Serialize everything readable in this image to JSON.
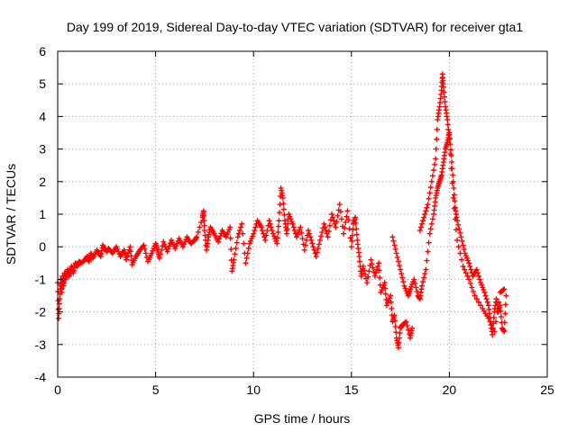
{
  "chart_data": {
    "type": "scatter",
    "title": "Day 199 of 2019, Sidereal Day-to-day VTEC variation (SDTVAR) for receiver gta1",
    "xlabel": "GPS time / hours",
    "ylabel": "SDTVAR / TECUs",
    "xlim": [
      0,
      25
    ],
    "ylim": [
      -4,
      6
    ],
    "xticks": [
      "0",
      "5",
      "10",
      "15",
      "20",
      "25"
    ],
    "yticks": [
      "-4",
      "-3",
      "-2",
      "-1",
      "0",
      "1",
      "2",
      "3",
      "4",
      "5",
      "6"
    ],
    "grid": true,
    "marker": "plus",
    "series": [
      {
        "name": "SDTVAR",
        "color": "#ff0000",
        "points": [
          [
            0.0,
            -1.1
          ],
          [
            0.05,
            -2.2
          ],
          [
            0.1,
            -1.6
          ],
          [
            0.15,
            -1.0
          ],
          [
            0.2,
            -1.4
          ],
          [
            0.25,
            -0.9
          ],
          [
            0.3,
            -1.2
          ],
          [
            0.35,
            -0.8
          ],
          [
            0.4,
            -1.0
          ],
          [
            0.5,
            -0.7
          ],
          [
            0.6,
            -0.9
          ],
          [
            0.7,
            -0.6
          ],
          [
            0.8,
            -0.8
          ],
          [
            0.9,
            -0.5
          ],
          [
            1.0,
            -0.6
          ],
          [
            1.1,
            -0.45
          ],
          [
            1.2,
            -0.5
          ],
          [
            1.4,
            -0.4
          ],
          [
            1.5,
            -0.3
          ],
          [
            1.6,
            -0.45
          ],
          [
            1.7,
            -0.2
          ],
          [
            1.8,
            -0.35
          ],
          [
            2.0,
            -0.1
          ],
          [
            2.2,
            -0.3
          ],
          [
            2.3,
            0.05
          ],
          [
            2.5,
            -0.15
          ],
          [
            2.6,
            -0.05
          ],
          [
            2.8,
            -0.2
          ],
          [
            3.0,
            0.0
          ],
          [
            3.2,
            -0.3
          ],
          [
            3.4,
            -0.1
          ],
          [
            3.5,
            -0.4
          ],
          [
            3.7,
            0.0
          ],
          [
            3.8,
            -0.55
          ],
          [
            4.0,
            -0.3
          ],
          [
            4.2,
            -0.1
          ],
          [
            4.4,
            0.05
          ],
          [
            4.6,
            -0.45
          ],
          [
            4.8,
            -0.2
          ],
          [
            5.0,
            0.1
          ],
          [
            5.1,
            -0.1
          ],
          [
            5.2,
            -0.35
          ],
          [
            5.4,
            0.15
          ],
          [
            5.6,
            -0.15
          ],
          [
            5.8,
            0.2
          ],
          [
            6.0,
            -0.05
          ],
          [
            6.2,
            0.25
          ],
          [
            6.4,
            0.0
          ],
          [
            6.6,
            0.3
          ],
          [
            6.8,
            0.1
          ],
          [
            7.0,
            0.2
          ],
          [
            7.1,
            0.3
          ],
          [
            7.4,
            0.9
          ],
          [
            7.45,
            1.1
          ],
          [
            7.5,
            0.5
          ],
          [
            7.6,
            -0.1
          ],
          [
            7.7,
            0.3
          ],
          [
            7.8,
            0.6
          ],
          [
            8.0,
            0.4
          ],
          [
            8.2,
            0.15
          ],
          [
            8.4,
            0.5
          ],
          [
            8.6,
            0.3
          ],
          [
            8.8,
            0.6
          ],
          [
            8.9,
            -0.75
          ],
          [
            9.0,
            -0.4
          ],
          [
            9.2,
            0.3
          ],
          [
            9.4,
            0.7
          ],
          [
            9.6,
            -0.5
          ],
          [
            9.8,
            0.1
          ],
          [
            10.0,
            0.4
          ],
          [
            10.2,
            0.8
          ],
          [
            10.4,
            0.6
          ],
          [
            10.6,
            0.2
          ],
          [
            10.8,
            0.8
          ],
          [
            11.0,
            0.4
          ],
          [
            11.2,
            0.1
          ],
          [
            11.3,
            0.8
          ],
          [
            11.4,
            1.8
          ],
          [
            11.5,
            1.5
          ],
          [
            11.6,
            0.8
          ],
          [
            11.7,
            0.4
          ],
          [
            11.8,
            1.0
          ],
          [
            12.0,
            0.7
          ],
          [
            12.2,
            0.3
          ],
          [
            12.4,
            0.6
          ],
          [
            12.6,
            -0.1
          ],
          [
            12.8,
            0.5
          ],
          [
            13.0,
            0.1
          ],
          [
            13.2,
            -0.3
          ],
          [
            13.4,
            0.2
          ],
          [
            13.6,
            0.7
          ],
          [
            13.8,
            0.3
          ],
          [
            14.0,
            1.0
          ],
          [
            14.2,
            0.6
          ],
          [
            14.4,
            1.3
          ],
          [
            14.6,
            0.4
          ],
          [
            14.8,
            1.1
          ],
          [
            15.0,
            0.0
          ],
          [
            15.1,
            0.7
          ],
          [
            15.2,
            0.9
          ],
          [
            15.3,
            0.2
          ],
          [
            15.4,
            -0.3
          ],
          [
            15.5,
            -0.9
          ],
          [
            15.6,
            -0.6
          ],
          [
            15.8,
            -1.1
          ],
          [
            16.0,
            -0.4
          ],
          [
            16.2,
            -0.9
          ],
          [
            16.4,
            -0.5
          ],
          [
            16.5,
            -1.4
          ],
          [
            16.7,
            -1.1
          ],
          [
            16.8,
            -1.8
          ],
          [
            17.0,
            -1.5
          ],
          [
            17.1,
            -2.3
          ],
          [
            17.2,
            -2.1
          ],
          [
            17.3,
            -2.8
          ],
          [
            17.4,
            -3.1
          ],
          [
            17.5,
            -2.5
          ],
          [
            17.6,
            -2.4
          ],
          [
            17.8,
            -2.3
          ],
          [
            18.0,
            -2.8
          ],
          [
            18.1,
            -2.5
          ],
          [
            17.1,
            0.3
          ],
          [
            17.3,
            -0.2
          ],
          [
            17.5,
            -0.7
          ],
          [
            17.7,
            -1.2
          ],
          [
            17.9,
            -1.5
          ],
          [
            18.0,
            -1.3
          ],
          [
            18.2,
            -1.0
          ],
          [
            18.4,
            -1.5
          ],
          [
            18.5,
            -1.6
          ],
          [
            18.6,
            -1.2
          ],
          [
            18.8,
            -0.7
          ],
          [
            19.0,
            0.4
          ],
          [
            19.2,
            1.0
          ],
          [
            19.3,
            1.5
          ],
          [
            19.4,
            1.8
          ],
          [
            19.5,
            2.0
          ],
          [
            19.6,
            2.2
          ],
          [
            19.7,
            2.6
          ],
          [
            19.8,
            3.0
          ],
          [
            19.9,
            3.2
          ],
          [
            20.0,
            3.5
          ],
          [
            20.1,
            2.8
          ],
          [
            20.2,
            2.0
          ],
          [
            20.3,
            1.2
          ],
          [
            20.4,
            0.8
          ],
          [
            20.6,
            0.3
          ],
          [
            20.8,
            -0.2
          ],
          [
            21.0,
            -0.5
          ],
          [
            21.2,
            -0.9
          ],
          [
            21.4,
            -0.7
          ],
          [
            21.6,
            -1.1
          ],
          [
            21.8,
            -1.4
          ],
          [
            22.0,
            -1.8
          ],
          [
            22.1,
            -2.3
          ],
          [
            22.2,
            -2.7
          ],
          [
            22.3,
            -2.0
          ],
          [
            22.4,
            -1.6
          ],
          [
            22.5,
            -2.0
          ],
          [
            22.6,
            -1.8
          ],
          [
            22.7,
            -2.5
          ],
          [
            22.8,
            -2.6
          ],
          [
            22.9,
            -1.5
          ],
          [
            18.5,
            0.5
          ],
          [
            18.7,
            0.9
          ],
          [
            18.9,
            1.3
          ],
          [
            19.1,
            2.0
          ],
          [
            19.3,
            2.7
          ],
          [
            19.4,
            3.9
          ],
          [
            19.5,
            4.3
          ],
          [
            19.6,
            4.8
          ],
          [
            19.65,
            5.3
          ],
          [
            19.7,
            4.9
          ],
          [
            19.8,
            4.3
          ],
          [
            19.9,
            3.9
          ],
          [
            20.0,
            3.3
          ],
          [
            20.2,
            1.5
          ],
          [
            20.4,
            0.2
          ],
          [
            20.7,
            -0.6
          ],
          [
            21.0,
            -1.0
          ],
          [
            21.3,
            -1.5
          ],
          [
            21.7,
            -1.9
          ],
          [
            22.0,
            -2.2
          ],
          [
            22.3,
            -2.6
          ],
          [
            22.6,
            -1.4
          ],
          [
            22.8,
            -1.3
          ]
        ]
      }
    ]
  }
}
